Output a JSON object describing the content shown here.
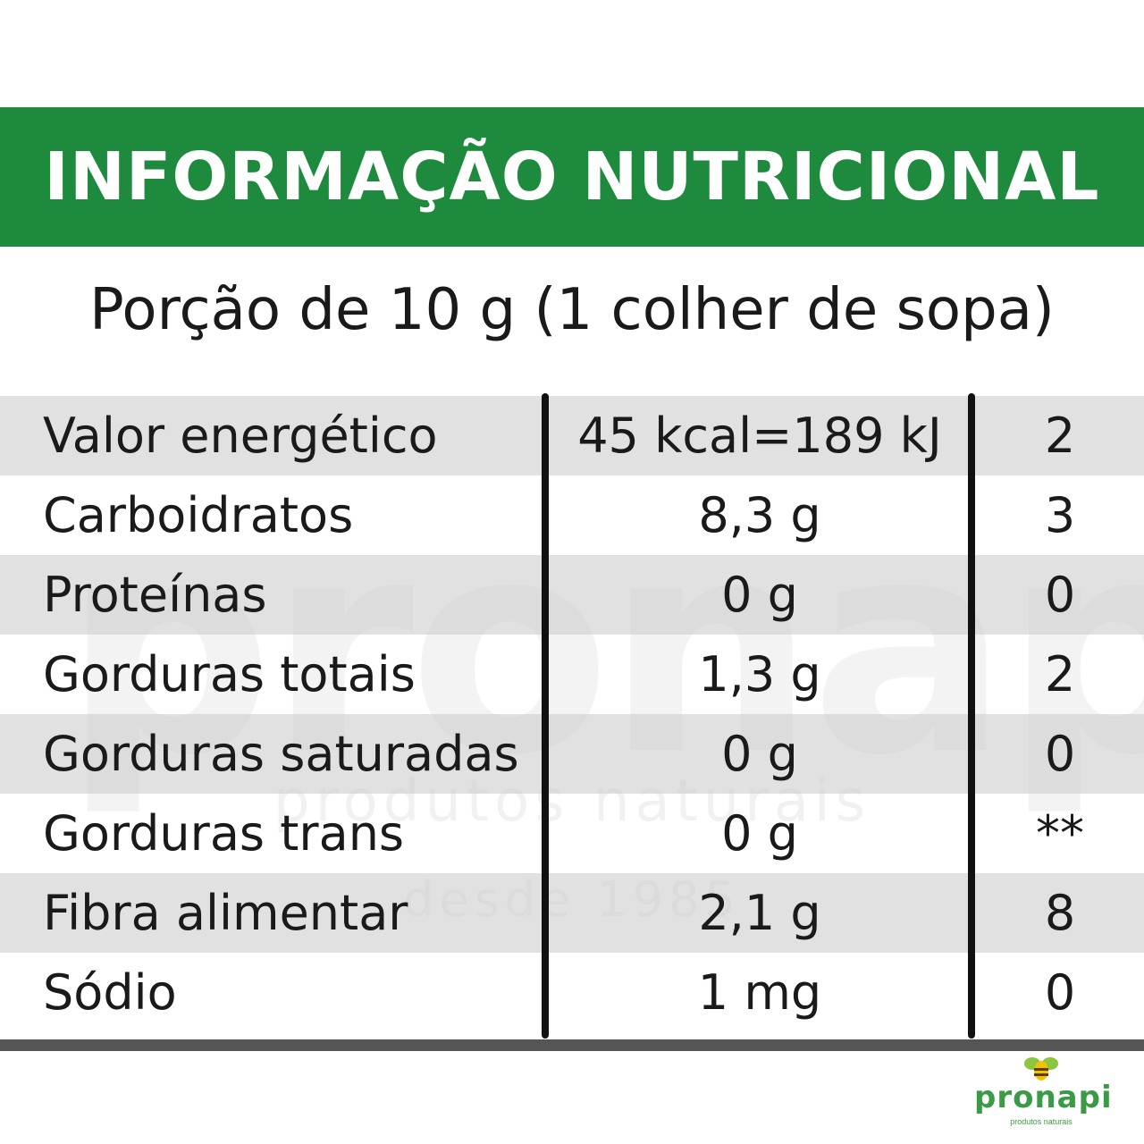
{
  "header": {
    "title": "INFORMAÇÃO NUTRICIONAL"
  },
  "portion": "Porção de 10 g (1 colher de sopa)",
  "rows": [
    {
      "name": "Valor energético",
      "value": "45 kcal=189 kJ",
      "pct": "2"
    },
    {
      "name": "Carboidratos",
      "value": "8,3 g",
      "pct": "3"
    },
    {
      "name": "Proteínas",
      "value": "0 g",
      "pct": "0"
    },
    {
      "name": "Gorduras totais",
      "value": "1,3 g",
      "pct": "2"
    },
    {
      "name": "Gorduras saturadas",
      "value": "0 g",
      "pct": "0"
    },
    {
      "name": "Gorduras trans",
      "value": "0 g",
      "pct": "**"
    },
    {
      "name": "Fibra alimentar",
      "value": "2,1 g",
      "pct": "8"
    },
    {
      "name": "Sódio",
      "value": "1 mg",
      "pct": "0"
    }
  ],
  "watermark": {
    "word": "pronapi",
    "line1": "produtos naturais",
    "line2": "desde 1985"
  },
  "logo": {
    "name": "pronapi",
    "tagline": "produtos naturais"
  },
  "colors": {
    "banner": "#1e8a3e",
    "logo": "#3a9a45",
    "row_shade": "#d0d0d0"
  }
}
